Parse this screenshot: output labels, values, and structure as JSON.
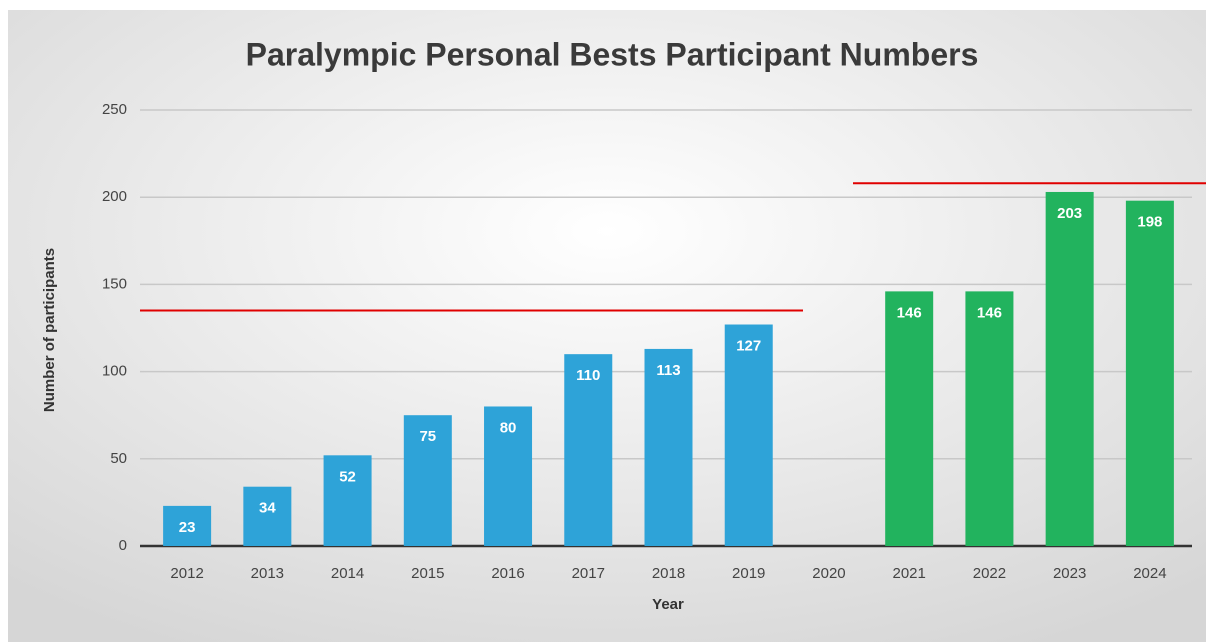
{
  "chart_data": {
    "type": "bar",
    "title": "Paralympic Personal Bests Participant Numbers",
    "x_label": "Year",
    "y_label": "Number of participants",
    "categories": [
      "2012",
      "2013",
      "2014",
      "2015",
      "2016",
      "2017",
      "2018",
      "2019",
      "2020",
      "2021",
      "2022",
      "2023",
      "2024"
    ],
    "values": [
      23,
      34,
      52,
      75,
      80,
      110,
      113,
      127,
      null,
      146,
      146,
      203,
      198
    ],
    "colors": [
      "#2ea3d8",
      "#2ea3d8",
      "#2ea3d8",
      "#2ea3d8",
      "#2ea3d8",
      "#2ea3d8",
      "#2ea3d8",
      "#2ea3d8",
      null,
      "#22b35e",
      "#22b35e",
      "#22b35e",
      "#22b35e"
    ],
    "ylim": [
      0,
      250
    ],
    "yticks": [
      0,
      50,
      100,
      150,
      200,
      250
    ],
    "grid": true,
    "reference_lines": [
      {
        "value": 135,
        "color": "#e00000"
      },
      {
        "value": 208,
        "color": "#e00000"
      }
    ]
  }
}
